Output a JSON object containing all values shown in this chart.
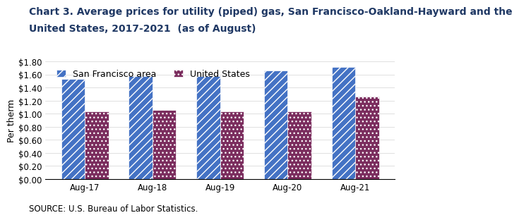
{
  "title_line1": "Chart 3. Average prices for utility (piped) gas, San Francisco-Oakland-Hayward and the",
  "title_line2": "United States, 2017-2021  (as of August)",
  "ylabel": "Per therm",
  "categories": [
    "Aug-17",
    "Aug-18",
    "Aug-19",
    "Aug-20",
    "Aug-21"
  ],
  "sf_values": [
    1.53,
    1.58,
    1.57,
    1.66,
    1.71
  ],
  "us_values": [
    1.03,
    1.06,
    1.04,
    1.04,
    1.26
  ],
  "sf_color": "#4472C4",
  "us_color": "#7B2D5E",
  "sf_hatch": "///",
  "us_hatch": "...",
  "sf_label": "San Francisco area",
  "us_label": "United States",
  "ylim": [
    0,
    1.8
  ],
  "yticks": [
    0.0,
    0.2,
    0.4,
    0.6,
    0.8,
    1.0,
    1.2,
    1.4,
    1.6,
    1.8
  ],
  "source_text": "SOURCE: U.S. Bureau of Labor Statistics.",
  "title_fontsize": 10,
  "axis_label_fontsize": 9,
  "tick_fontsize": 8.5,
  "legend_fontsize": 9,
  "source_fontsize": 8.5,
  "bar_width": 0.35,
  "title_color": "#1F3864",
  "axis_color": "#1F3864",
  "background_color": "#FFFFFF"
}
